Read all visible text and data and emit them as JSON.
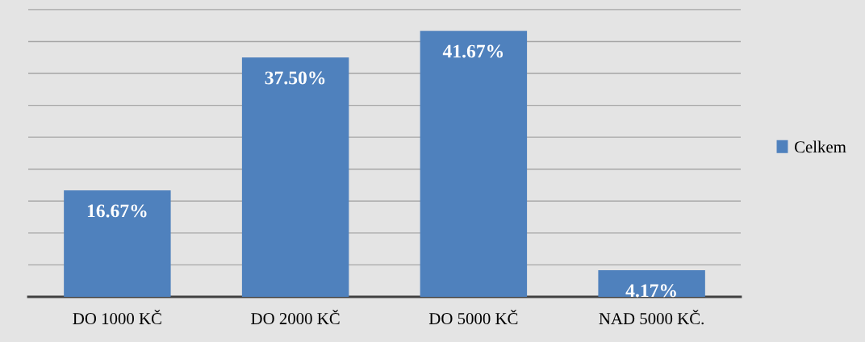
{
  "chart_data": {
    "type": "bar",
    "categories": [
      "DO 1000 KČ",
      "DO 2000 KČ",
      "DO 5000 KČ",
      "NAD 5000 KČ."
    ],
    "series": [
      {
        "name": "Celkem",
        "color": "#4f81bd",
        "values": [
          16.67,
          37.5,
          41.67,
          4.17
        ],
        "value_labels": [
          "16.67%",
          "37.50%",
          "41.67%",
          "4.17%"
        ]
      }
    ],
    "ylim": [
      0,
      46.5
    ],
    "yticks": [
      {
        "value": 0,
        "label": null
      },
      {
        "value": 5,
        "label": null
      },
      {
        "value": 10,
        "label": null
      },
      {
        "value": 15,
        "label": null
      },
      {
        "value": 20,
        "label": null
      },
      {
        "value": 25,
        "label": null
      },
      {
        "value": 30,
        "label": null
      },
      {
        "value": 35,
        "label": null
      },
      {
        "value": 40,
        "label": null
      },
      {
        "value": 45,
        "label": null
      }
    ],
    "tick_labels": "x",
    "grid": "y",
    "legend": "right"
  }
}
